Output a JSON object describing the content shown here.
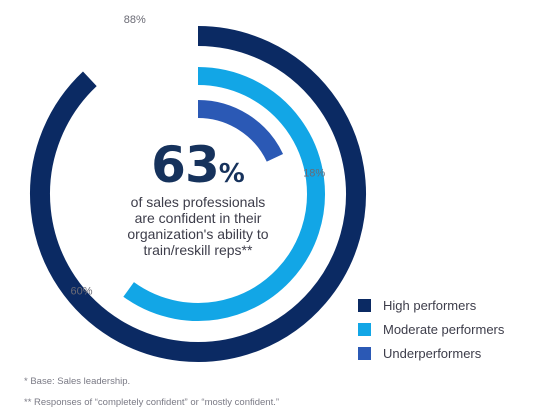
{
  "chart_data": {
    "type": "radial-bar",
    "series": [
      {
        "name": "High performers",
        "value": 88,
        "label": "88%",
        "color": "#0b2a63"
      },
      {
        "name": "Moderate performers",
        "value": 60,
        "label": "60%",
        "color": "#12a6e6"
      },
      {
        "name": "Underperformers",
        "value": 18,
        "label": "18%",
        "color": "#2b59b5"
      }
    ],
    "headline": {
      "number": "63",
      "unit": "%"
    },
    "subtext": [
      "of sales professionals",
      "are confident in their",
      "organization's ability to",
      "train/reskill reps**"
    ],
    "legend_position": "bottom-right"
  },
  "footnotes": [
    "* Base: Sales leadership.",
    "** Responses of “completely confident” or “mostly confident.”"
  ]
}
